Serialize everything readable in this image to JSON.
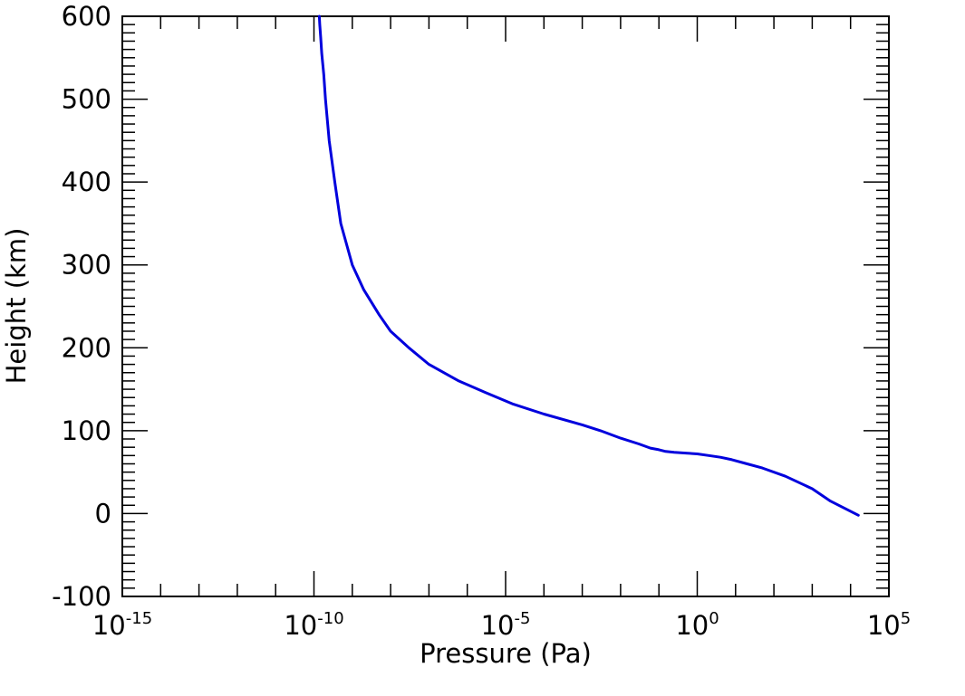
{
  "chart_data": {
    "type": "line",
    "title": "",
    "xlabel": "Pressure (Pa)",
    "ylabel": "Height (km)",
    "x_scale": "log",
    "xlim": [
      1e-15,
      100000.0
    ],
    "ylim": [
      -100,
      600
    ],
    "x_ticks": [
      {
        "base": "10",
        "exp": "-15"
      },
      {
        "base": "10",
        "exp": "-10"
      },
      {
        "base": "10",
        "exp": "-5"
      },
      {
        "base": "10",
        "exp": "0"
      },
      {
        "base": "10",
        "exp": "5"
      }
    ],
    "y_ticks": [
      "-100",
      "0",
      "100",
      "200",
      "300",
      "400",
      "500",
      "600"
    ],
    "grid": false,
    "series": [
      {
        "color": "#0000dd",
        "x": [
          16000.0,
          3000.0,
          1000.0,
          200.0,
          50.0,
          20.0,
          8,
          4,
          2,
          1,
          0.5,
          0.25,
          0.15,
          0.1,
          0.06,
          0.03,
          0.01,
          0.003,
          0.001,
          0.0001,
          1.6e-05,
          3e-06,
          6e-07,
          1e-07,
          3e-08,
          1e-08,
          5e-09,
          2e-09,
          1e-09,
          5e-10,
          3.5e-10,
          2.5e-10,
          2e-10,
          1.8e-10,
          1.6e-10,
          1.5e-10,
          1.42e-10,
          1.38e-10
        ],
        "y": [
          -2,
          15,
          30,
          45,
          55,
          60,
          65,
          68,
          70,
          72,
          73,
          74,
          75,
          77,
          79,
          84,
          91,
          100,
          107,
          120,
          132,
          146,
          160,
          180,
          200,
          220,
          240,
          270,
          300,
          350,
          400,
          450,
          500,
          530,
          555,
          575,
          590,
          600
        ]
      }
    ]
  }
}
